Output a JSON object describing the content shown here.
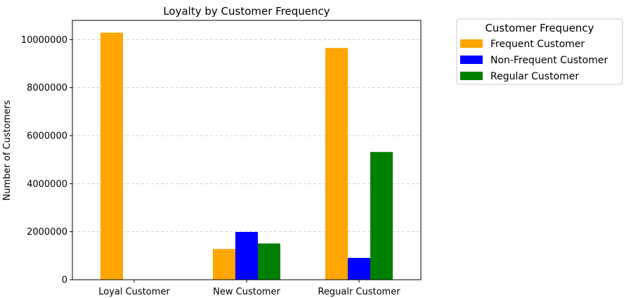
{
  "chart_data": {
    "type": "bar",
    "title": "Loyalty by Customer Frequency",
    "xlabel": "",
    "ylabel": "Number of Customers",
    "categories": [
      "Loyal Customer",
      "New Customer",
      "Regualr Customer"
    ],
    "series": [
      {
        "name": "Frequent Customer",
        "color": "#ffa500",
        "values": [
          10290000,
          1280000,
          9650000
        ]
      },
      {
        "name": "Non-Frequent Customer",
        "color": "#0000ff",
        "values": [
          0,
          1990000,
          910000
        ]
      },
      {
        "name": "Regular Customer",
        "color": "#008000",
        "values": [
          0,
          1510000,
          5320000
        ]
      }
    ],
    "ylim": [
      0,
      10800000
    ],
    "yticks": [
      0,
      2000000,
      4000000,
      6000000,
      8000000,
      10000000
    ],
    "ytick_labels": [
      "0",
      "2000000",
      "4000000",
      "6000000",
      "8000000",
      "10000000"
    ],
    "grid": "y-dashed",
    "legend": {
      "title": "Customer Frequency",
      "placement": "outside-right"
    }
  }
}
